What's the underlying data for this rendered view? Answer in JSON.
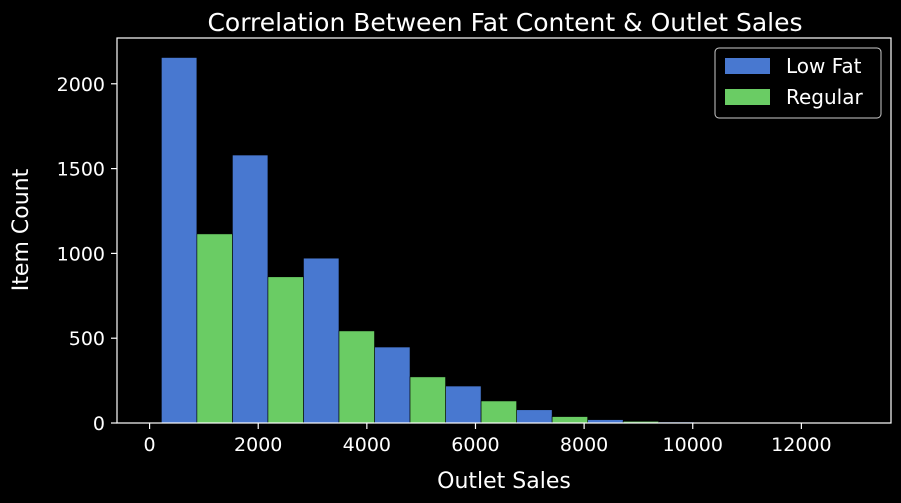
{
  "chart_data": {
    "type": "bar",
    "title": "Correlation Between Fat Content & Outlet Sales",
    "xlabel": "Outlet Sales",
    "ylabel": "Item Count",
    "xlim": [
      -600,
      13650
    ],
    "ylim": [
      0,
      2270
    ],
    "x_ticks": [
      0,
      2000,
      4000,
      6000,
      8000,
      10000,
      12000
    ],
    "y_ticks": [
      0,
      500,
      1000,
      1500,
      2000
    ],
    "bin_edges": [
      217,
      1525,
      2833,
      4141,
      5449,
      6757,
      8065,
      9373,
      10681,
      11989,
      13297
    ],
    "series": [
      {
        "name": "Low Fat",
        "color": "#4878d0",
        "values": [
          2155,
          1580,
          972,
          448,
          218,
          78,
          20,
          6,
          2,
          1
        ]
      },
      {
        "name": "Regular",
        "color": "#6acc64",
        "values": [
          1115,
          862,
          543,
          272,
          130,
          38,
          10,
          2,
          1,
          0
        ]
      }
    ],
    "legend": {
      "placement": "top-right"
    },
    "grid": false,
    "colors": {
      "background": "#000000",
      "foreground": "#ffffff"
    }
  }
}
